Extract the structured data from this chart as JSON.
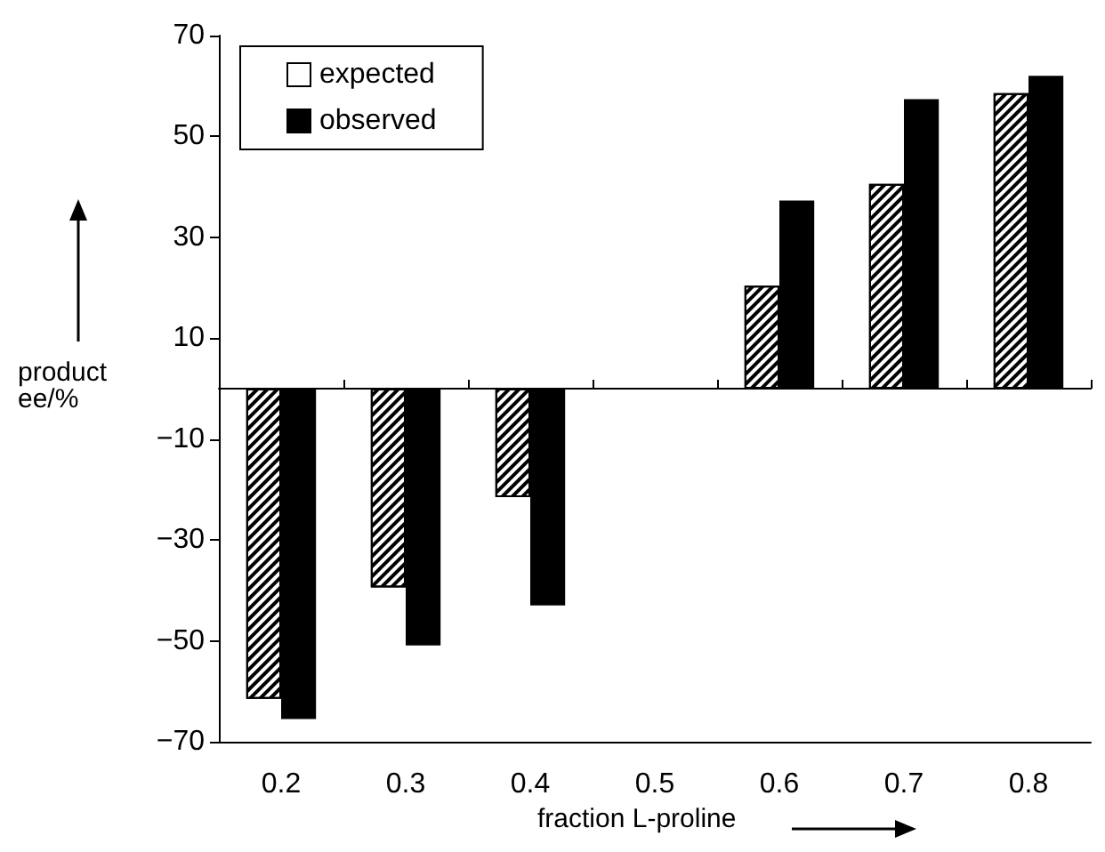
{
  "chart_data": {
    "type": "bar",
    "categories": [
      "0.2",
      "0.3",
      "0.4",
      "0.5",
      "0.6",
      "0.7",
      "0.8"
    ],
    "series": [
      {
        "name": "expected",
        "color": "#ffffff",
        "values": [
          -61.5,
          -39.4,
          -21.5,
          null,
          20.4,
          40.6,
          58.6
        ]
      },
      {
        "name": "observed",
        "color": "#000000",
        "values": [
          -65.5,
          -50.9,
          -43,
          null,
          37.3,
          57.4,
          62
        ]
      }
    ],
    "xlabel": "fraction L-proline",
    "ylabel": "product ee/%",
    "ylim": [
      -70,
      70
    ],
    "yticks": [
      -70,
      -50,
      -30,
      -10,
      10,
      30,
      50,
      70
    ],
    "grid": false,
    "legend": "top left"
  }
}
